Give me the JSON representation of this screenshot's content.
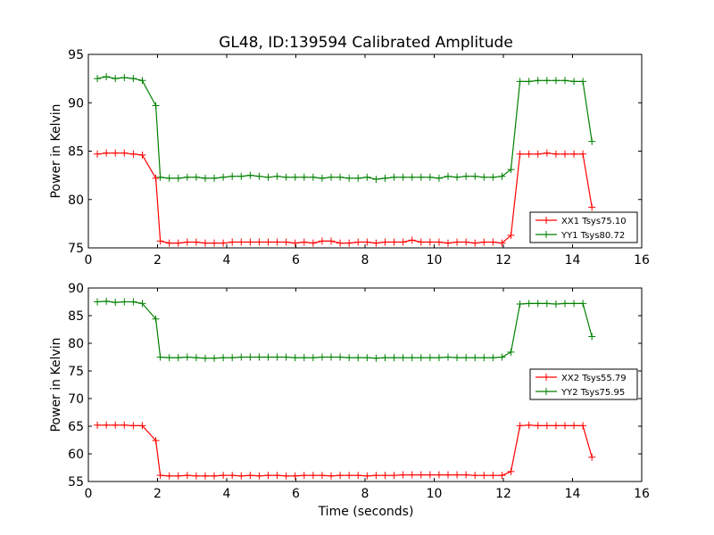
{
  "figure_title": "GL48, ID:139594 Calibrated Amplitude",
  "x_axis_label": "Time (seconds)",
  "chart_data": [
    {
      "type": "line",
      "title": "GL48, ID:139594 Calibrated Amplitude",
      "xlabel": "",
      "ylabel": "Power in Kelvin",
      "xlim": [
        0,
        16
      ],
      "ylim": [
        75,
        95
      ],
      "x_ticks": [
        "0",
        "2",
        "4",
        "6",
        "8",
        "10",
        "12",
        "14",
        "16"
      ],
      "y_ticks": [
        "75",
        "80",
        "85",
        "90",
        "95"
      ],
      "grid": false,
      "legend_position": "lower-right",
      "x": [
        0.26,
        0.52,
        0.78,
        1.04,
        1.3,
        1.56,
        1.95,
        2.08,
        2.34,
        2.6,
        2.86,
        3.12,
        3.38,
        3.64,
        3.9,
        4.16,
        4.42,
        4.68,
        4.94,
        5.2,
        5.46,
        5.72,
        5.98,
        6.24,
        6.5,
        6.76,
        7.02,
        7.28,
        7.54,
        7.8,
        8.06,
        8.32,
        8.58,
        8.84,
        9.1,
        9.36,
        9.62,
        9.88,
        10.14,
        10.4,
        10.66,
        10.92,
        11.18,
        11.44,
        11.7,
        11.96,
        12.22,
        12.48,
        12.74,
        13.0,
        13.26,
        13.52,
        13.78,
        14.04,
        14.3,
        14.56
      ],
      "series": [
        {
          "name": "XX1 Tsys75.10",
          "color": "#ff0000",
          "values": [
            84.7,
            84.8,
            84.8,
            84.8,
            84.7,
            84.6,
            82.2,
            75.7,
            75.5,
            75.5,
            75.6,
            75.6,
            75.5,
            75.5,
            75.5,
            75.6,
            75.6,
            75.6,
            75.6,
            75.6,
            75.6,
            75.6,
            75.5,
            75.6,
            75.5,
            75.7,
            75.7,
            75.5,
            75.5,
            75.6,
            75.6,
            75.5,
            75.6,
            75.6,
            75.6,
            75.8,
            75.6,
            75.6,
            75.6,
            75.5,
            75.6,
            75.6,
            75.5,
            75.6,
            75.6,
            75.5,
            76.3,
            84.7,
            84.7,
            84.7,
            84.8,
            84.7,
            84.7,
            84.7,
            84.7,
            79.2
          ]
        },
        {
          "name": "YY1 Tsys80.72",
          "color": "#008000",
          "values": [
            92.5,
            92.7,
            92.5,
            92.6,
            92.5,
            92.3,
            89.7,
            82.3,
            82.2,
            82.2,
            82.3,
            82.3,
            82.2,
            82.2,
            82.3,
            82.4,
            82.4,
            82.5,
            82.4,
            82.3,
            82.4,
            82.3,
            82.3,
            82.3,
            82.3,
            82.2,
            82.3,
            82.3,
            82.2,
            82.2,
            82.3,
            82.1,
            82.2,
            82.3,
            82.3,
            82.3,
            82.3,
            82.3,
            82.2,
            82.4,
            82.3,
            82.4,
            82.4,
            82.3,
            82.3,
            82.4,
            83.1,
            92.2,
            92.2,
            92.3,
            92.3,
            92.3,
            92.3,
            92.2,
            92.2,
            86.0
          ]
        }
      ]
    },
    {
      "type": "line",
      "title": "",
      "xlabel": "Time (seconds)",
      "ylabel": "Power in Kelvin",
      "xlim": [
        0,
        16
      ],
      "ylim": [
        55,
        90
      ],
      "x_ticks": [
        "0",
        "2",
        "4",
        "6",
        "8",
        "10",
        "12",
        "14",
        "16"
      ],
      "y_ticks": [
        "55",
        "60",
        "65",
        "70",
        "75",
        "80",
        "85",
        "90"
      ],
      "grid": false,
      "legend_position": "right",
      "x": [
        0.26,
        0.52,
        0.78,
        1.04,
        1.3,
        1.56,
        1.95,
        2.08,
        2.34,
        2.6,
        2.86,
        3.12,
        3.38,
        3.64,
        3.9,
        4.16,
        4.42,
        4.68,
        4.94,
        5.2,
        5.46,
        5.72,
        5.98,
        6.24,
        6.5,
        6.76,
        7.02,
        7.28,
        7.54,
        7.8,
        8.06,
        8.32,
        8.58,
        8.84,
        9.1,
        9.36,
        9.62,
        9.88,
        10.14,
        10.4,
        10.66,
        10.92,
        11.18,
        11.44,
        11.7,
        11.96,
        12.22,
        12.48,
        12.74,
        13.0,
        13.26,
        13.52,
        13.78,
        14.04,
        14.3,
        14.56
      ],
      "series": [
        {
          "name": "XX2 Tsys55.79",
          "color": "#ff0000",
          "values": [
            65.2,
            65.2,
            65.2,
            65.2,
            65.1,
            65.1,
            62.4,
            56.1,
            56.0,
            56.0,
            56.1,
            56.0,
            56.0,
            56.0,
            56.1,
            56.1,
            56.0,
            56.1,
            56.0,
            56.1,
            56.1,
            56.0,
            56.0,
            56.1,
            56.1,
            56.1,
            56.0,
            56.1,
            56.1,
            56.1,
            56.0,
            56.1,
            56.1,
            56.1,
            56.2,
            56.2,
            56.2,
            56.2,
            56.2,
            56.2,
            56.2,
            56.2,
            56.1,
            56.1,
            56.1,
            56.1,
            56.8,
            65.1,
            65.2,
            65.1,
            65.1,
            65.1,
            65.1,
            65.1,
            65.1,
            59.4
          ]
        },
        {
          "name": "YY2 Tsys75.95",
          "color": "#008000",
          "values": [
            87.5,
            87.6,
            87.4,
            87.5,
            87.5,
            87.2,
            84.4,
            77.5,
            77.4,
            77.4,
            77.5,
            77.4,
            77.3,
            77.3,
            77.4,
            77.4,
            77.5,
            77.5,
            77.5,
            77.5,
            77.5,
            77.5,
            77.4,
            77.4,
            77.4,
            77.5,
            77.5,
            77.5,
            77.4,
            77.4,
            77.4,
            77.3,
            77.4,
            77.4,
            77.4,
            77.4,
            77.4,
            77.4,
            77.4,
            77.5,
            77.4,
            77.4,
            77.4,
            77.4,
            77.4,
            77.5,
            78.4,
            87.1,
            87.2,
            87.2,
            87.2,
            87.1,
            87.2,
            87.2,
            87.2,
            81.2
          ]
        }
      ]
    }
  ]
}
